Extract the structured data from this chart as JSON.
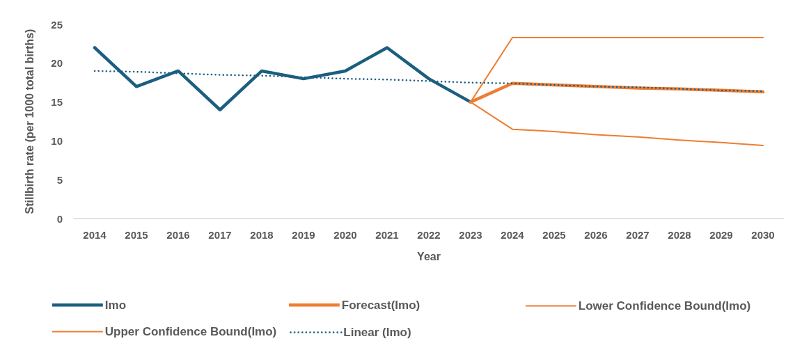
{
  "chart_data": {
    "type": "line",
    "xlabel": "Year",
    "ylabel": "Stillbirth rate (per 1000 total births)",
    "categories": [
      "2014",
      "2015",
      "2016",
      "2017",
      "2018",
      "2019",
      "2020",
      "2021",
      "2022",
      "2023",
      "2024",
      "2025",
      "2026",
      "2027",
      "2028",
      "2029",
      "2030"
    ],
    "ylim": [
      0,
      25
    ],
    "yticks": [
      0,
      5,
      10,
      15,
      20,
      25
    ],
    "legend": "bottom",
    "marker": "none",
    "line_style": "solid",
    "series": [
      {
        "name": "Imo",
        "color": "#1b5e80",
        "values": [
          22,
          17,
          19,
          14,
          19,
          18,
          19,
          22,
          18,
          15,
          null,
          null,
          null,
          null,
          null,
          null,
          null
        ]
      },
      {
        "name": "Forecast(Imo)",
        "color": "#ed7d31",
        "values": [
          null,
          null,
          null,
          null,
          null,
          null,
          null,
          null,
          null,
          15,
          17.4,
          17.2,
          17.0,
          16.8,
          16.7,
          16.5,
          16.3
        ]
      },
      {
        "name": "Lower Confidence Bound(Imo)",
        "color": "#ed7d31",
        "values": [
          null,
          null,
          null,
          null,
          null,
          null,
          null,
          null,
          null,
          15,
          11.5,
          11.2,
          10.8,
          10.5,
          10.1,
          9.8,
          9.4
        ]
      },
      {
        "name": "Upper Confidence Bound(Imo)",
        "color": "#ed7d31",
        "values": [
          null,
          null,
          null,
          null,
          null,
          null,
          null,
          null,
          null,
          15,
          23.3,
          23.3,
          23.3,
          23.3,
          23.3,
          23.3,
          23.3
        ]
      },
      {
        "name": "Linear (Imo)",
        "type": "line",
        "line_style": "dotted",
        "color": "#1b5e80",
        "values": [
          19.0,
          18.9,
          18.7,
          18.5,
          18.4,
          18.2,
          18.0,
          17.9,
          17.7,
          17.5,
          17.4,
          17.2,
          17.0,
          16.9,
          16.7,
          16.5,
          16.4
        ]
      }
    ]
  }
}
